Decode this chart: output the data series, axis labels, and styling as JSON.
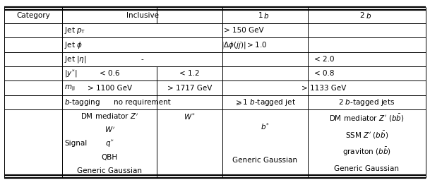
{
  "figsize": [
    6.09,
    2.62
  ],
  "dpi": 100,
  "bg_color": "#ffffff",
  "sub_cols": [
    0.0,
    0.138,
    0.362,
    0.517,
    0.72,
    1.0
  ],
  "row_height_units": [
    1.05,
    0.95,
    0.95,
    0.95,
    0.95,
    0.95,
    0.95,
    4.5
  ],
  "fs": 7.5,
  "outer_lw": 1.6,
  "thin_lw": 0.7,
  "signal_items_col1": [
    "DM mediator $Z'$",
    "$W'$",
    "$q^{*}$",
    "QBH",
    "Generic Gaussian"
  ],
  "signal_items_col2": [
    "$W^{*}$"
  ],
  "signal_items_col3": [
    "$b^{*}$",
    "Generic Gaussian"
  ],
  "signal_items_col4": [
    "DM mediator $Z'$ ($b\\bar{b}$)",
    "SSM $Z'$ ($b\\bar{b}$)",
    "graviton ($b\\bar{b}$)",
    "Generic Gaussian"
  ]
}
